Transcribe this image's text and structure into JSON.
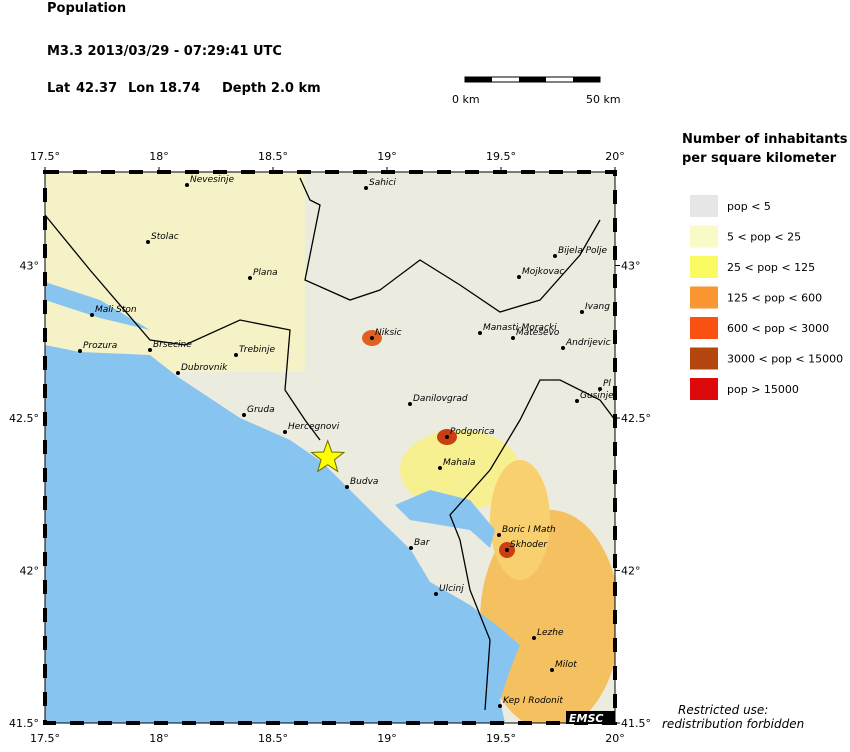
{
  "header": {
    "title": "Population",
    "event": "M3.3  2013/03/29 - 07:29:41 UTC",
    "lat": {
      "label": "Lat",
      "value": 42.37
    },
    "lon": {
      "label": "Lon",
      "value": 18.74
    },
    "depth": "Depth  2.0 km"
  },
  "scale": {
    "start": "0 km",
    "end": "50 km"
  },
  "map": {
    "xticks": [
      {
        "value": 17.5,
        "label": "17.5°"
      },
      {
        "value": 18,
        "label": "18°"
      },
      {
        "value": 18.5,
        "label": "18.5°"
      },
      {
        "value": 19,
        "label": "19°"
      },
      {
        "value": 19.5,
        "label": "19.5°"
      },
      {
        "value": 20,
        "label": "20°"
      }
    ],
    "yticks": [
      {
        "value": 41.5,
        "label": "41.5°"
      },
      {
        "value": 42,
        "label": "42°"
      },
      {
        "value": 42.5,
        "label": "42.5°"
      },
      {
        "value": 43,
        "label": "43°"
      }
    ],
    "cities": [
      "Nevesinje",
      "Sahici",
      "Stolac",
      "Plana",
      "Mali Ston",
      "Prozura",
      "Brsecine",
      "Trebinje",
      "Dubrovnik",
      "Niksic",
      "Gruda",
      "Hercegnovi",
      "Budva",
      "Danilovgrad",
      "Podgorica",
      "Mahala",
      "Bar",
      "Ulcinj",
      "Boric I Math",
      "Skhoder",
      "Lezhe",
      "Milot",
      "Kep I Rodonit",
      "Mojkovac",
      "Bijela Polje",
      "Manasti-Moracki",
      "Mateševo",
      "Ivang",
      "Andrijevic",
      "Gusinje",
      "Pl"
    ]
  },
  "legend": {
    "title": [
      "Number of inhabitants",
      "per square kilometer"
    ],
    "items": [
      {
        "label": "pop < 5",
        "color": "#e6e6e6"
      },
      {
        "label": "5 < pop < 25",
        "color": "#fafac8"
      },
      {
        "label": "25 < pop < 125",
        "color": "#fafa64"
      },
      {
        "label": "125 < pop < 600",
        "color": "#fa9632"
      },
      {
        "label": "600 < pop < 3000",
        "color": "#fa5014"
      },
      {
        "label": "3000 < pop < 15000",
        "color": "#b4460f"
      },
      {
        "label": "pop > 15000",
        "color": "#dc0a0a"
      }
    ]
  },
  "footer": {
    "notice": [
      "Restricted use:",
      "redistribution forbidden"
    ],
    "logo": "EMSC"
  }
}
